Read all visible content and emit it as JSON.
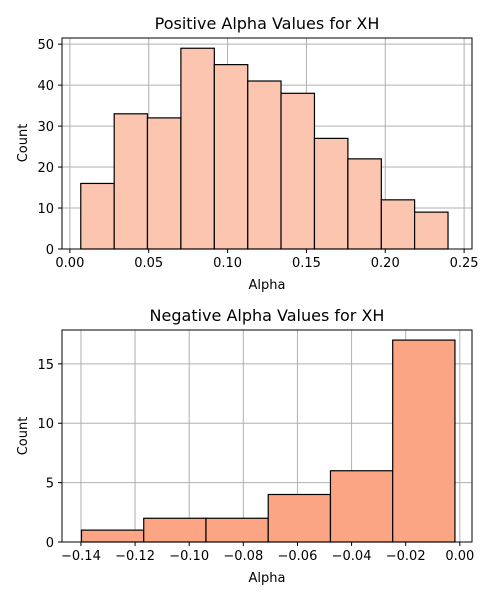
{
  "chart_data": [
    {
      "type": "bar",
      "title": "Positive Alpha Values for XH",
      "xlabel": "Alpha",
      "ylabel": "Count",
      "color": "#fcc5b0",
      "xlim": [
        -0.005,
        0.255
      ],
      "ylim": [
        0,
        51.5
      ],
      "grid": true,
      "xticks": [
        0.0,
        0.05,
        0.1,
        0.15,
        0.2,
        0.25
      ],
      "xtick_labels": [
        "0.00",
        "0.05",
        "0.10",
        "0.15",
        "0.20",
        "0.25"
      ],
      "yticks": [
        0,
        10,
        20,
        30,
        40,
        50
      ],
      "ytick_labels": [
        "0",
        "10",
        "20",
        "30",
        "40",
        "50"
      ],
      "bins": [
        {
          "x0": 0.0069,
          "x1": 0.0281,
          "count": 16
        },
        {
          "x0": 0.0281,
          "x1": 0.0492,
          "count": 33
        },
        {
          "x0": 0.0492,
          "x1": 0.0704,
          "count": 32
        },
        {
          "x0": 0.0704,
          "x1": 0.0916,
          "count": 49
        },
        {
          "x0": 0.0916,
          "x1": 0.1128,
          "count": 45
        },
        {
          "x0": 0.1128,
          "x1": 0.1339,
          "count": 41
        },
        {
          "x0": 0.1339,
          "x1": 0.1551,
          "count": 38
        },
        {
          "x0": 0.1551,
          "x1": 0.1763,
          "count": 27
        },
        {
          "x0": 0.1763,
          "x1": 0.1975,
          "count": 22
        },
        {
          "x0": 0.1975,
          "x1": 0.2186,
          "count": 12
        },
        {
          "x0": 0.2186,
          "x1": 0.2398,
          "count": 9
        }
      ]
    },
    {
      "type": "bar",
      "title": "Negative Alpha Values for XH",
      "xlabel": "Alpha",
      "ylabel": "Count",
      "color": "#fca584",
      "xlim": [
        -0.147,
        0.0045
      ],
      "ylim": [
        0,
        17.85
      ],
      "grid": true,
      "xticks": [
        -0.14,
        -0.12,
        -0.1,
        -0.08,
        -0.06,
        -0.04,
        -0.02,
        0.0
      ],
      "xtick_labels": [
        "−0.14",
        "−0.12",
        "−0.10",
        "−0.08",
        "−0.06",
        "−0.04",
        "−0.02",
        "0.00"
      ],
      "yticks": [
        0,
        5,
        10,
        15
      ],
      "ytick_labels": [
        "0",
        "5",
        "10",
        "15"
      ],
      "bins": [
        {
          "x0": -0.1398,
          "x1": -0.1168,
          "count": 1
        },
        {
          "x0": -0.1168,
          "x1": -0.0938,
          "count": 2
        },
        {
          "x0": -0.0938,
          "x1": -0.0708,
          "count": 2
        },
        {
          "x0": -0.0708,
          "x1": -0.0478,
          "count": 4
        },
        {
          "x0": -0.0478,
          "x1": -0.0248,
          "count": 6
        },
        {
          "x0": -0.0248,
          "x1": -0.0018,
          "count": 17
        }
      ]
    }
  ]
}
